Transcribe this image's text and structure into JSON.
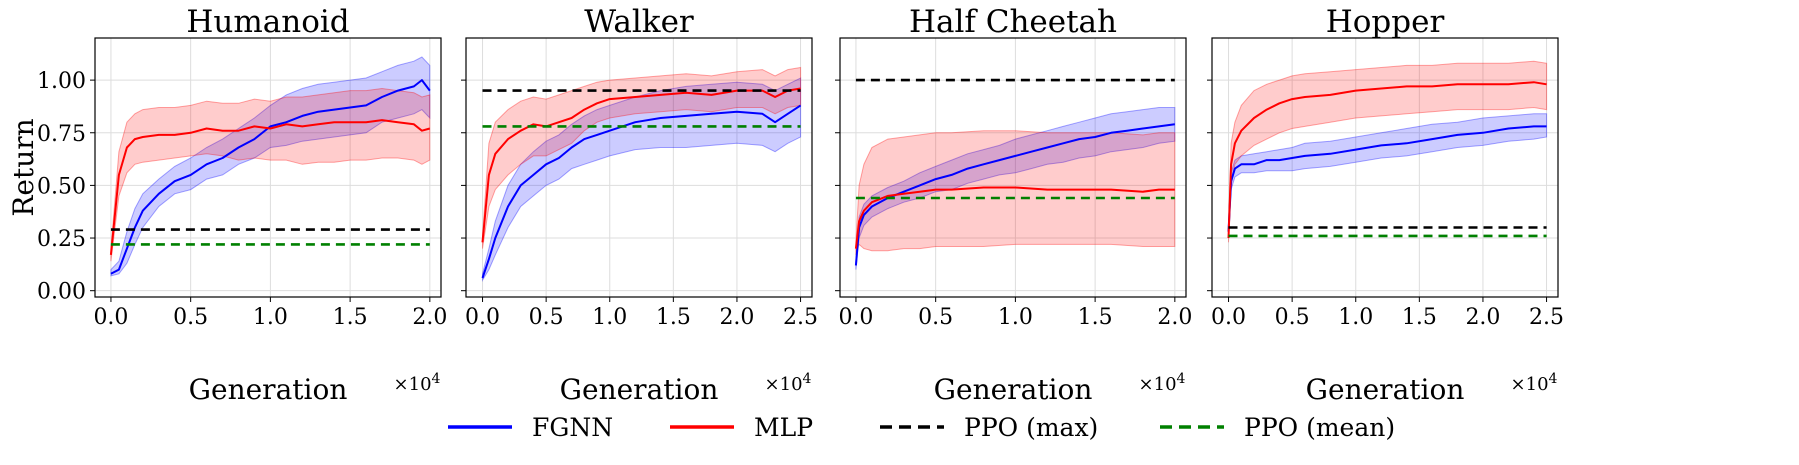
{
  "chart_data": [
    {
      "type": "line",
      "title": "Humanoid",
      "xlabel": "Generation",
      "ylabel": "Return",
      "x_multiplier": "×10^4",
      "xlim": [
        -0.1,
        2.07
      ],
      "ylim": [
        -0.03,
        1.2
      ],
      "xticks": [
        0.0,
        0.5,
        1.0,
        1.5,
        2.0
      ],
      "yticks": [
        0.0,
        0.25,
        0.5,
        0.75,
        1.0
      ],
      "grid": true,
      "series": [
        {
          "name": "FGNN",
          "color": "#0000ff",
          "x": [
            0.0,
            0.05,
            0.1,
            0.15,
            0.2,
            0.3,
            0.4,
            0.5,
            0.6,
            0.7,
            0.8,
            0.9,
            1.0,
            1.1,
            1.2,
            1.3,
            1.4,
            1.5,
            1.6,
            1.7,
            1.8,
            1.9,
            1.95,
            2.0
          ],
          "y": [
            0.08,
            0.1,
            0.2,
            0.3,
            0.38,
            0.46,
            0.52,
            0.55,
            0.6,
            0.63,
            0.68,
            0.72,
            0.78,
            0.8,
            0.83,
            0.85,
            0.86,
            0.87,
            0.88,
            0.92,
            0.95,
            0.97,
            1.0,
            0.95
          ],
          "lower": [
            0.07,
            0.08,
            0.13,
            0.22,
            0.3,
            0.4,
            0.46,
            0.48,
            0.53,
            0.55,
            0.6,
            0.63,
            0.68,
            0.69,
            0.71,
            0.72,
            0.73,
            0.74,
            0.75,
            0.8,
            0.82,
            0.84,
            0.86,
            0.82
          ],
          "upper": [
            0.1,
            0.14,
            0.28,
            0.39,
            0.46,
            0.53,
            0.59,
            0.63,
            0.68,
            0.72,
            0.77,
            0.82,
            0.88,
            0.93,
            0.96,
            0.98,
            0.99,
            1.0,
            1.01,
            1.04,
            1.07,
            1.09,
            1.11,
            1.07
          ]
        },
        {
          "name": "MLP",
          "color": "#ff0000",
          "x": [
            0.0,
            0.05,
            0.1,
            0.15,
            0.2,
            0.3,
            0.4,
            0.5,
            0.6,
            0.7,
            0.8,
            0.9,
            1.0,
            1.1,
            1.2,
            1.3,
            1.4,
            1.5,
            1.6,
            1.7,
            1.8,
            1.9,
            1.95,
            2.0
          ],
          "y": [
            0.17,
            0.55,
            0.68,
            0.72,
            0.73,
            0.74,
            0.74,
            0.75,
            0.77,
            0.76,
            0.76,
            0.78,
            0.77,
            0.79,
            0.78,
            0.79,
            0.8,
            0.8,
            0.8,
            0.81,
            0.8,
            0.79,
            0.76,
            0.77
          ],
          "lower": [
            0.14,
            0.45,
            0.56,
            0.6,
            0.61,
            0.62,
            0.63,
            0.64,
            0.65,
            0.64,
            0.62,
            0.63,
            0.62,
            0.62,
            0.6,
            0.61,
            0.61,
            0.62,
            0.62,
            0.63,
            0.63,
            0.62,
            0.6,
            0.62
          ],
          "upper": [
            0.2,
            0.66,
            0.8,
            0.84,
            0.86,
            0.87,
            0.87,
            0.88,
            0.9,
            0.89,
            0.89,
            0.91,
            0.9,
            0.92,
            0.92,
            0.93,
            0.94,
            0.95,
            0.95,
            0.96,
            0.95,
            0.94,
            0.92,
            0.93
          ]
        },
        {
          "name": "PPO (max)",
          "color": "#000000",
          "dashed": true,
          "x": [
            0.0,
            2.0
          ],
          "y": [
            0.29,
            0.29
          ]
        },
        {
          "name": "PPO (mean)",
          "color": "#008000",
          "dashed": true,
          "x": [
            0.0,
            2.0
          ],
          "y": [
            0.22,
            0.22
          ]
        }
      ]
    },
    {
      "type": "line",
      "title": "Walker",
      "xlabel": "Generation",
      "ylabel": "",
      "x_multiplier": "×10^4",
      "xlim": [
        -0.13,
        2.59
      ],
      "ylim": [
        -0.03,
        1.2
      ],
      "xticks": [
        0.0,
        0.5,
        1.0,
        1.5,
        2.0,
        2.5
      ],
      "yticks": [
        0.0,
        0.25,
        0.5,
        0.75,
        1.0
      ],
      "grid": true,
      "series": [
        {
          "name": "FGNN",
          "color": "#0000ff",
          "x": [
            0.0,
            0.05,
            0.1,
            0.2,
            0.3,
            0.4,
            0.5,
            0.6,
            0.7,
            0.8,
            0.9,
            1.0,
            1.2,
            1.4,
            1.6,
            1.8,
            2.0,
            2.2,
            2.3,
            2.4,
            2.5
          ],
          "y": [
            0.06,
            0.15,
            0.25,
            0.4,
            0.5,
            0.55,
            0.6,
            0.63,
            0.68,
            0.72,
            0.74,
            0.76,
            0.8,
            0.82,
            0.83,
            0.84,
            0.85,
            0.84,
            0.8,
            0.84,
            0.88
          ],
          "lower": [
            0.05,
            0.1,
            0.17,
            0.3,
            0.4,
            0.45,
            0.5,
            0.53,
            0.58,
            0.6,
            0.62,
            0.64,
            0.67,
            0.68,
            0.68,
            0.69,
            0.7,
            0.69,
            0.66,
            0.7,
            0.73
          ],
          "upper": [
            0.08,
            0.2,
            0.33,
            0.5,
            0.6,
            0.66,
            0.71,
            0.74,
            0.79,
            0.83,
            0.86,
            0.88,
            0.92,
            0.95,
            0.97,
            0.98,
            0.99,
            0.98,
            0.95,
            0.98,
            1.01
          ]
        },
        {
          "name": "MLP",
          "color": "#ff0000",
          "x": [
            0.0,
            0.05,
            0.1,
            0.2,
            0.3,
            0.4,
            0.5,
            0.6,
            0.7,
            0.8,
            0.9,
            1.0,
            1.2,
            1.4,
            1.6,
            1.8,
            2.0,
            2.2,
            2.3,
            2.4,
            2.5
          ],
          "y": [
            0.23,
            0.55,
            0.65,
            0.72,
            0.76,
            0.79,
            0.78,
            0.8,
            0.82,
            0.86,
            0.89,
            0.91,
            0.92,
            0.93,
            0.94,
            0.93,
            0.95,
            0.95,
            0.92,
            0.95,
            0.96
          ],
          "lower": [
            0.2,
            0.4,
            0.48,
            0.55,
            0.6,
            0.64,
            0.64,
            0.67,
            0.7,
            0.76,
            0.8,
            0.82,
            0.84,
            0.85,
            0.86,
            0.85,
            0.87,
            0.87,
            0.84,
            0.87,
            0.88
          ],
          "upper": [
            0.26,
            0.7,
            0.8,
            0.86,
            0.9,
            0.92,
            0.91,
            0.93,
            0.95,
            0.97,
            0.99,
            1.0,
            1.01,
            1.02,
            1.03,
            1.02,
            1.04,
            1.05,
            1.02,
            1.05,
            1.06
          ]
        },
        {
          "name": "PPO (max)",
          "color": "#000000",
          "dashed": true,
          "x": [
            0.0,
            2.5
          ],
          "y": [
            0.95,
            0.95
          ]
        },
        {
          "name": "PPO (mean)",
          "color": "#008000",
          "dashed": true,
          "x": [
            0.0,
            2.5
          ],
          "y": [
            0.78,
            0.78
          ]
        }
      ]
    },
    {
      "type": "line",
      "title": "Half Cheetah",
      "xlabel": "Generation",
      "ylabel": "",
      "x_multiplier": "×10^4",
      "xlim": [
        -0.1,
        2.07
      ],
      "ylim": [
        -0.03,
        1.2
      ],
      "xticks": [
        0.0,
        0.5,
        1.0,
        1.5,
        2.0
      ],
      "yticks": [
        0.0,
        0.25,
        0.5,
        0.75,
        1.0
      ],
      "grid": true,
      "series": [
        {
          "name": "FGNN",
          "color": "#0000ff",
          "x": [
            0.0,
            0.02,
            0.05,
            0.1,
            0.2,
            0.3,
            0.4,
            0.5,
            0.6,
            0.7,
            0.8,
            0.9,
            1.0,
            1.1,
            1.2,
            1.3,
            1.4,
            1.5,
            1.6,
            1.7,
            1.8,
            1.9,
            2.0
          ],
          "y": [
            0.12,
            0.3,
            0.36,
            0.4,
            0.44,
            0.47,
            0.5,
            0.53,
            0.55,
            0.58,
            0.6,
            0.62,
            0.64,
            0.66,
            0.68,
            0.7,
            0.72,
            0.73,
            0.75,
            0.76,
            0.77,
            0.78,
            0.79
          ],
          "lower": [
            0.1,
            0.25,
            0.31,
            0.35,
            0.39,
            0.42,
            0.44,
            0.47,
            0.48,
            0.51,
            0.53,
            0.55,
            0.56,
            0.58,
            0.6,
            0.61,
            0.63,
            0.64,
            0.66,
            0.67,
            0.68,
            0.7,
            0.71
          ],
          "upper": [
            0.14,
            0.35,
            0.41,
            0.45,
            0.49,
            0.52,
            0.56,
            0.59,
            0.62,
            0.65,
            0.67,
            0.69,
            0.72,
            0.74,
            0.76,
            0.78,
            0.8,
            0.82,
            0.84,
            0.85,
            0.86,
            0.87,
            0.87
          ]
        },
        {
          "name": "MLP",
          "color": "#ff0000",
          "x": [
            0.0,
            0.02,
            0.05,
            0.1,
            0.2,
            0.3,
            0.4,
            0.5,
            0.6,
            0.8,
            1.0,
            1.2,
            1.4,
            1.6,
            1.8,
            1.9,
            2.0
          ],
          "y": [
            0.2,
            0.33,
            0.38,
            0.42,
            0.45,
            0.46,
            0.47,
            0.48,
            0.48,
            0.49,
            0.49,
            0.48,
            0.48,
            0.48,
            0.47,
            0.48,
            0.48
          ],
          "lower": [
            0.17,
            0.22,
            0.2,
            0.19,
            0.19,
            0.2,
            0.2,
            0.21,
            0.21,
            0.21,
            0.22,
            0.22,
            0.22,
            0.22,
            0.21,
            0.21,
            0.21
          ],
          "upper": [
            0.23,
            0.5,
            0.6,
            0.68,
            0.72,
            0.73,
            0.74,
            0.75,
            0.75,
            0.76,
            0.76,
            0.75,
            0.75,
            0.75,
            0.74,
            0.75,
            0.75
          ]
        },
        {
          "name": "PPO (max)",
          "color": "#000000",
          "dashed": true,
          "x": [
            0.0,
            2.0
          ],
          "y": [
            1.0,
            1.0
          ]
        },
        {
          "name": "PPO (mean)",
          "color": "#008000",
          "dashed": true,
          "x": [
            0.0,
            2.0
          ],
          "y": [
            0.44,
            0.44
          ]
        }
      ]
    },
    {
      "type": "line",
      "title": "Hopper",
      "xlabel": "Generation",
      "ylabel": "",
      "x_multiplier": "×10^4",
      "xlim": [
        -0.13,
        2.59
      ],
      "ylim": [
        -0.03,
        1.2
      ],
      "xticks": [
        0.0,
        0.5,
        1.0,
        1.5,
        2.0,
        2.5
      ],
      "yticks": [
        0.0,
        0.25,
        0.5,
        0.75,
        1.0
      ],
      "grid": true,
      "series": [
        {
          "name": "FGNN",
          "color": "#0000ff",
          "x": [
            0.0,
            0.02,
            0.05,
            0.1,
            0.2,
            0.3,
            0.4,
            0.5,
            0.6,
            0.8,
            1.0,
            1.2,
            1.4,
            1.6,
            1.8,
            2.0,
            2.2,
            2.4,
            2.5
          ],
          "y": [
            0.28,
            0.52,
            0.58,
            0.6,
            0.6,
            0.62,
            0.62,
            0.63,
            0.64,
            0.65,
            0.67,
            0.69,
            0.7,
            0.72,
            0.74,
            0.75,
            0.77,
            0.78,
            0.78
          ],
          "lower": [
            0.26,
            0.48,
            0.54,
            0.56,
            0.56,
            0.57,
            0.57,
            0.57,
            0.58,
            0.59,
            0.61,
            0.63,
            0.64,
            0.66,
            0.68,
            0.69,
            0.71,
            0.72,
            0.73
          ],
          "upper": [
            0.3,
            0.56,
            0.62,
            0.64,
            0.65,
            0.66,
            0.67,
            0.68,
            0.7,
            0.71,
            0.73,
            0.75,
            0.77,
            0.79,
            0.8,
            0.82,
            0.83,
            0.84,
            0.84
          ]
        },
        {
          "name": "MLP",
          "color": "#ff0000",
          "x": [
            0.0,
            0.02,
            0.05,
            0.1,
            0.2,
            0.3,
            0.4,
            0.5,
            0.6,
            0.8,
            1.0,
            1.2,
            1.4,
            1.6,
            1.8,
            2.0,
            2.2,
            2.4,
            2.5
          ],
          "y": [
            0.25,
            0.6,
            0.7,
            0.76,
            0.82,
            0.86,
            0.89,
            0.91,
            0.92,
            0.93,
            0.95,
            0.96,
            0.97,
            0.97,
            0.98,
            0.98,
            0.98,
            0.99,
            0.98
          ],
          "lower": [
            0.23,
            0.5,
            0.6,
            0.64,
            0.69,
            0.72,
            0.75,
            0.77,
            0.78,
            0.8,
            0.82,
            0.83,
            0.84,
            0.85,
            0.86,
            0.86,
            0.86,
            0.87,
            0.86
          ],
          "upper": [
            0.27,
            0.7,
            0.8,
            0.88,
            0.95,
            0.98,
            1.0,
            1.02,
            1.03,
            1.04,
            1.05,
            1.06,
            1.07,
            1.07,
            1.08,
            1.08,
            1.08,
            1.09,
            1.08
          ]
        },
        {
          "name": "PPO (max)",
          "color": "#000000",
          "dashed": true,
          "x": [
            0.0,
            2.5
          ],
          "y": [
            0.3,
            0.3
          ]
        },
        {
          "name": "PPO (mean)",
          "color": "#008000",
          "dashed": true,
          "x": [
            0.0,
            2.5
          ],
          "y": [
            0.26,
            0.26
          ]
        }
      ]
    }
  ],
  "legend": {
    "placement": "bottom-center",
    "entries": [
      {
        "label": "FGNN",
        "color": "#0000ff",
        "dashed": false
      },
      {
        "label": "MLP",
        "color": "#ff0000",
        "dashed": false
      },
      {
        "label": "PPO (max)",
        "color": "#000000",
        "dashed": true
      },
      {
        "label": "PPO (mean)",
        "color": "#008000",
        "dashed": true
      }
    ]
  }
}
